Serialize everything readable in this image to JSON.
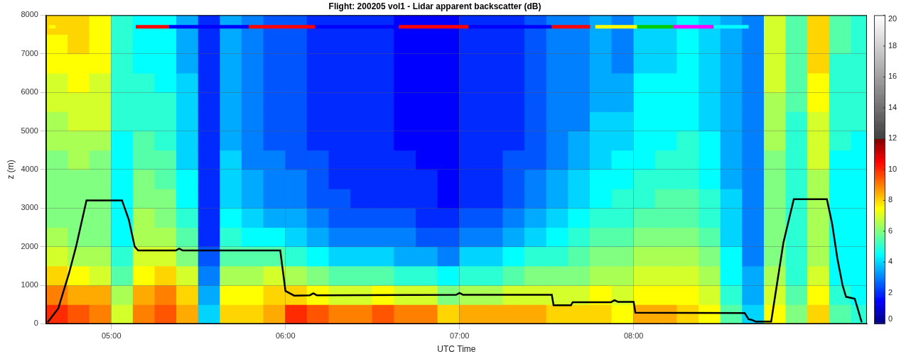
{
  "chart_data": {
    "type": "heatmap",
    "title": "Flight: 200205 vol1 - Lidar apparent backscatter (dB)",
    "x_label": "UTC Time",
    "y_label": "z (m)",
    "xlim": [
      4.625,
      9.34
    ],
    "xticks": [
      {
        "value": 5,
        "label": "05:00"
      },
      {
        "value": 6,
        "label": "06:00"
      },
      {
        "value": 7,
        "label": "07:00"
      },
      {
        "value": 8,
        "label": "08:00"
      }
    ],
    "ylim": [
      0,
      8000
    ],
    "yticks": [
      0,
      1000,
      2000,
      3000,
      4000,
      5000,
      6000,
      7000,
      8000
    ],
    "grid": true,
    "cells": {
      "x_edges": [
        4.625,
        4.75,
        4.875,
        5,
        5.125,
        5.25,
        5.375,
        5.5,
        5.625,
        5.75,
        5.875,
        6,
        6.125,
        6.25,
        6.375,
        6.5,
        6.625,
        6.75,
        6.875,
        7,
        7.125,
        7.25,
        7.375,
        7.5,
        7.625,
        7.75,
        7.875,
        8,
        8.125,
        8.25,
        8.375,
        8.5,
        8.625,
        8.75,
        8.875,
        9,
        9.125,
        9.25,
        9.375
      ],
      "z_edges": [
        0,
        500,
        1000,
        1500,
        2000,
        2500,
        3000,
        3500,
        4000,
        4500,
        5000,
        5500,
        6000,
        6500,
        7000,
        7500,
        8000
      ],
      "values_by_column": [
        [
          10,
          9,
          8,
          7,
          6.5,
          6,
          6,
          6,
          6,
          6.5,
          6.5,
          7,
          7,
          7.5,
          7.5,
          8
        ],
        [
          9.5,
          8.5,
          7.5,
          6.5,
          6,
          6,
          6,
          6,
          6.5,
          6.5,
          7,
          7,
          7.5,
          7.5,
          8,
          8
        ],
        [
          9,
          8.5,
          7,
          6.5,
          6,
          6,
          6,
          6,
          6,
          6.5,
          7,
          7,
          7,
          7.5,
          7.5,
          7.5
        ],
        [
          7,
          6.5,
          5.5,
          5,
          4.5,
          4.5,
          4.5,
          4.5,
          4.5,
          4.5,
          5,
          5,
          5,
          5,
          5,
          5
        ],
        [
          9,
          8.5,
          7.5,
          7,
          6.5,
          6.5,
          6,
          6,
          5.5,
          5.5,
          5,
          5,
          5,
          4.5,
          4.5,
          4.5
        ],
        [
          9.5,
          9,
          8,
          7,
          6.5,
          6,
          6,
          5.5,
          5.5,
          5,
          5,
          5,
          4.5,
          4.5,
          4.5,
          4.5
        ],
        [
          8.5,
          8,
          7,
          6,
          5.5,
          5,
          4.5,
          4.5,
          4,
          4,
          4,
          4,
          4,
          3.5,
          3.5,
          3.5
        ],
        [
          4,
          3.5,
          3,
          2.5,
          2,
          2,
          2,
          2,
          2,
          2,
          2,
          2,
          2,
          2,
          2,
          2
        ],
        [
          8,
          7.5,
          6.5,
          5.5,
          5,
          4.5,
          4,
          4,
          4,
          3.5,
          3.5,
          3.5,
          3.5,
          3.5,
          3.5,
          3.5
        ],
        [
          8,
          7.5,
          6.5,
          5.5,
          4.5,
          4,
          3.5,
          3.5,
          3,
          3,
          3,
          3,
          3,
          3,
          3,
          3
        ],
        [
          8.5,
          8,
          7,
          5.5,
          4.5,
          3.5,
          3,
          3,
          3,
          2.5,
          2.5,
          2.5,
          2.5,
          2.5,
          2.5,
          2.5
        ],
        [
          10,
          8,
          6.5,
          5,
          4,
          3.5,
          3,
          3,
          2.5,
          2.5,
          2.5,
          2.5,
          2.5,
          2.5,
          2.5,
          2.5
        ],
        [
          9.5,
          7.5,
          6,
          4.5,
          3.5,
          3,
          2.5,
          2.5,
          2.5,
          2,
          2,
          2,
          2,
          2,
          2,
          2
        ],
        [
          9,
          7,
          5.5,
          4,
          3,
          2.5,
          2.5,
          2,
          2,
          2,
          2,
          2,
          2,
          2,
          2,
          2
        ],
        [
          9,
          7,
          5.5,
          4,
          3,
          2.5,
          2,
          2,
          2,
          2,
          2,
          2,
          2,
          2,
          2,
          2
        ],
        [
          9.5,
          7.5,
          5.5,
          4,
          3,
          2.5,
          2,
          2,
          2,
          2,
          2,
          2,
          2,
          2,
          2,
          2
        ],
        [
          9,
          7,
          5,
          3.5,
          3,
          2.5,
          2,
          2,
          2,
          1.5,
          1.5,
          1.5,
          1.5,
          1.5,
          1.5,
          1.5
        ],
        [
          9,
          7,
          5,
          3.5,
          2.5,
          2,
          2,
          2,
          1.5,
          1.5,
          1.5,
          1.5,
          1.5,
          1.5,
          1.5,
          1.5
        ],
        [
          8,
          6,
          4.5,
          3,
          2.5,
          2,
          1.5,
          1.5,
          1.5,
          1.5,
          1.5,
          1.5,
          1.5,
          1.5,
          1.5,
          1.5
        ],
        [
          8.5,
          6.5,
          5,
          4,
          3,
          2.5,
          2,
          2,
          2,
          2,
          2,
          2,
          2,
          2,
          2,
          2
        ],
        [
          8.5,
          6.5,
          5,
          4,
          3,
          2.5,
          2,
          2,
          2,
          2,
          2,
          2,
          2,
          2,
          2,
          2
        ],
        [
          8.5,
          7,
          5.5,
          4.5,
          3.5,
          3,
          2.5,
          2.5,
          2.5,
          2,
          2,
          2,
          2,
          2,
          2,
          2
        ],
        [
          8.5,
          7,
          6,
          5,
          4,
          3.5,
          3,
          3,
          2.5,
          2.5,
          2.5,
          2.5,
          2.5,
          2.5,
          2.5,
          2.5
        ],
        [
          8,
          7,
          6,
          5,
          4.5,
          4,
          3.5,
          3.5,
          3,
          3,
          3,
          3,
          3,
          3,
          3,
          3
        ],
        [
          8,
          7,
          6,
          5.5,
          5,
          4.5,
          4,
          4,
          3.5,
          3.5,
          3,
          3,
          3,
          3,
          3,
          3
        ],
        [
          8,
          7.5,
          6.5,
          6,
          5.5,
          5,
          4.5,
          4.5,
          4,
          4,
          4,
          3.5,
          3.5,
          3.5,
          3.5,
          3.5
        ],
        [
          7.5,
          7,
          6.5,
          6,
          5.5,
          5,
          5,
          4.5,
          4.5,
          4,
          4,
          3.5,
          3.5,
          3,
          3,
          3
        ],
        [
          8.5,
          7.5,
          7,
          6.5,
          6,
          5.5,
          5,
          5,
          4.5,
          4.5,
          4.5,
          4.5,
          4.5,
          4,
          4,
          4
        ],
        [
          8.5,
          7.5,
          7,
          6.5,
          6,
          5.5,
          5.5,
          5,
          5,
          4.5,
          4.5,
          4.5,
          4.5,
          4,
          4,
          4
        ],
        [
          8,
          7.5,
          7,
          6.5,
          6,
          5.5,
          5.5,
          5,
          5,
          5,
          4.5,
          4.5,
          4.5,
          4.5,
          4.5,
          4.5
        ],
        [
          7.5,
          7,
          6.5,
          6,
          5.5,
          5,
          5,
          4.5,
          4.5,
          4.5,
          4,
          4,
          4,
          4,
          4,
          4
        ],
        [
          5.5,
          5,
          4.5,
          4.5,
          4,
          4,
          4,
          3.5,
          3.5,
          3.5,
          3.5,
          3.5,
          3.5,
          3.5,
          3.5,
          3.5
        ],
        [
          4,
          3.5,
          3.5,
          3,
          3,
          3,
          3,
          3,
          3,
          3,
          3,
          3,
          3,
          3,
          3,
          3
        ],
        [
          7.5,
          7,
          6.5,
          6,
          6,
          6,
          6,
          6,
          6,
          6.5,
          6.5,
          6.5,
          7,
          7,
          7,
          7
        ],
        [
          6,
          5.5,
          5,
          5,
          5,
          5,
          5,
          5,
          5,
          5,
          5,
          5.5,
          5.5,
          5.5,
          5.5,
          5.5
        ],
        [
          8,
          7.5,
          7,
          6.5,
          6.5,
          6.5,
          6.5,
          6.5,
          7,
          7,
          7,
          7.5,
          7.5,
          8,
          8,
          8
        ],
        [
          5.5,
          5,
          4.5,
          4.5,
          4.5,
          4.5,
          4.5,
          4.5,
          4.5,
          5,
          5,
          5,
          5,
          5,
          5.5,
          5.5
        ],
        [
          5,
          4.5,
          4.5,
          4.5,
          4.5,
          4.5,
          4.5,
          4.5,
          4.5,
          4.5,
          5,
          5,
          5,
          5,
          5,
          5
        ]
      ]
    },
    "colorbar": {
      "lim": [
        0,
        20
      ],
      "ticks": [
        0,
        2,
        4,
        6,
        8,
        10,
        12,
        14,
        16,
        18,
        20
      ]
    },
    "line": {
      "color": "#000000",
      "x": [
        4.634,
        4.695,
        4.756,
        4.797,
        4.837,
        4.857,
        5.061,
        5.1,
        5.134,
        5.154,
        5.37,
        5.39,
        5.41,
        5.97,
        5.99,
        6.0,
        6.05,
        6.14,
        6.16,
        6.18,
        6.98,
        7.0,
        7.02,
        7.53,
        7.54,
        7.64,
        7.65,
        7.87,
        7.89,
        7.91,
        8.0,
        8.01,
        8.638,
        8.66,
        8.68,
        8.7,
        8.79,
        8.86,
        8.92,
        9.11,
        9.14,
        9.17,
        9.2,
        9.22,
        9.27,
        9.29,
        9.31
      ],
      "y": [
        40,
        400,
        1300,
        2000,
        2800,
        3200,
        3200,
        2700,
        2000,
        1900,
        1900,
        1950,
        1900,
        1900,
        1200,
        850,
        730,
        740,
        790,
        740,
        750,
        800,
        750,
        750,
        480,
        480,
        560,
        560,
        610,
        570,
        570,
        290,
        280,
        120,
        100,
        60,
        60,
        2100,
        3230,
        3230,
        2600,
        1700,
        1000,
        700,
        650,
        350,
        40
      ]
    },
    "legs_z": 7700,
    "legs": [
      {
        "start": 4.64,
        "end": 4.68,
        "color": "#ffff00"
      },
      {
        "start": 5.14,
        "end": 5.33,
        "color": "#ff0000"
      },
      {
        "start": 5.33,
        "end": 5.79,
        "color": "#0000ff"
      },
      {
        "start": 5.79,
        "end": 6.17,
        "color": "#ff0000"
      },
      {
        "start": 6.17,
        "end": 6.65,
        "color": "#0000ff"
      },
      {
        "start": 6.65,
        "end": 7.05,
        "color": "#ff0000"
      },
      {
        "start": 7.05,
        "end": 7.53,
        "color": "#0000ff"
      },
      {
        "start": 7.53,
        "end": 7.75,
        "color": "#ff0000"
      },
      {
        "start": 7.78,
        "end": 8.02,
        "color": "#ffff00"
      },
      {
        "start": 8.02,
        "end": 8.23,
        "color": "#00cc00"
      },
      {
        "start": 8.23,
        "end": 8.46,
        "color": "#ff00ff"
      },
      {
        "start": 8.46,
        "end": 8.66,
        "color": "#00ffff"
      }
    ]
  }
}
